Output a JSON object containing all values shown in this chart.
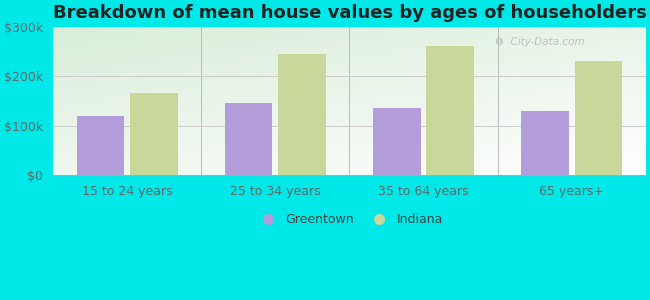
{
  "title": "Breakdown of mean house values by ages of householders",
  "categories": [
    "15 to 24 years",
    "25 to 34 years",
    "35 to 64 years",
    "65 years+"
  ],
  "greentown_values": [
    120000,
    145000,
    135000,
    130000
  ],
  "indiana_values": [
    165000,
    245000,
    260000,
    230000
  ],
  "greentown_color": "#b39ddb",
  "indiana_color": "#c8d89a",
  "background_color": "#00e8e8",
  "grad_top": "#d8eece",
  "grad_bottom": "#f5faf0",
  "ylim": [
    0,
    300000
  ],
  "yticks": [
    0,
    100000,
    200000,
    300000
  ],
  "ytick_labels": [
    "$0",
    "$100k",
    "$200k",
    "$300k"
  ],
  "bar_width": 0.32,
  "title_fontsize": 13,
  "legend_labels": [
    "Greentown",
    "Indiana"
  ],
  "watermark": "City-Data.com"
}
